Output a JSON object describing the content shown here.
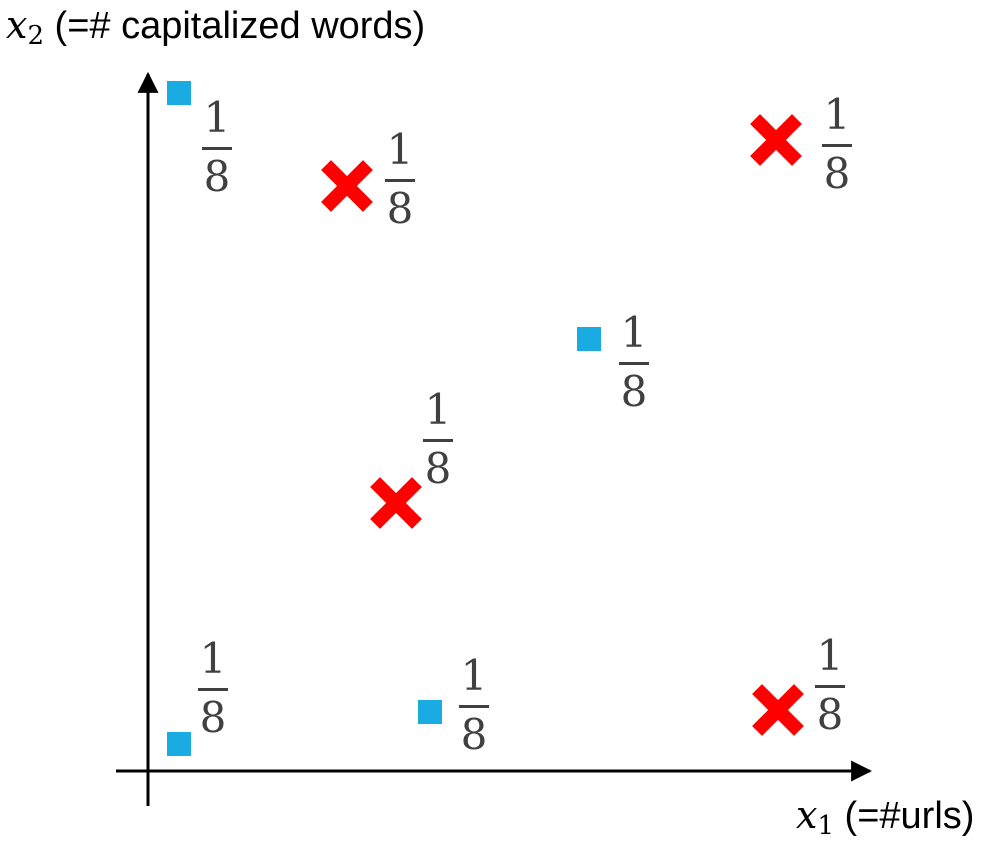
{
  "axes": {
    "y_title": {
      "var": "x",
      "sub": "2",
      "text": "(=# capitalized words)"
    },
    "x_title": {
      "var": "x",
      "sub": "1",
      "text": "(=#urls)"
    },
    "line_color": "#000000"
  },
  "classes": {
    "positive": {
      "icon": "square-marker-icon",
      "color": "#1aabe3"
    },
    "negative": {
      "icon": "x-marker-icon",
      "color": "#ff0000"
    }
  },
  "points": [
    {
      "id": "p1",
      "class": "positive",
      "weight": {
        "num": "1",
        "den": "8"
      }
    },
    {
      "id": "p2",
      "class": "negative",
      "weight": {
        "num": "1",
        "den": "8"
      }
    },
    {
      "id": "p3",
      "class": "negative",
      "weight": {
        "num": "1",
        "den": "8"
      }
    },
    {
      "id": "p4",
      "class": "positive",
      "weight": {
        "num": "1",
        "den": "8"
      }
    },
    {
      "id": "p5",
      "class": "negative",
      "weight": {
        "num": "1",
        "den": "8"
      }
    },
    {
      "id": "p6",
      "class": "positive",
      "weight": {
        "num": "1",
        "den": "8"
      }
    },
    {
      "id": "p7",
      "class": "positive",
      "weight": {
        "num": "1",
        "den": "8"
      }
    },
    {
      "id": "p8",
      "class": "negative",
      "weight": {
        "num": "1",
        "den": "8"
      }
    }
  ]
}
